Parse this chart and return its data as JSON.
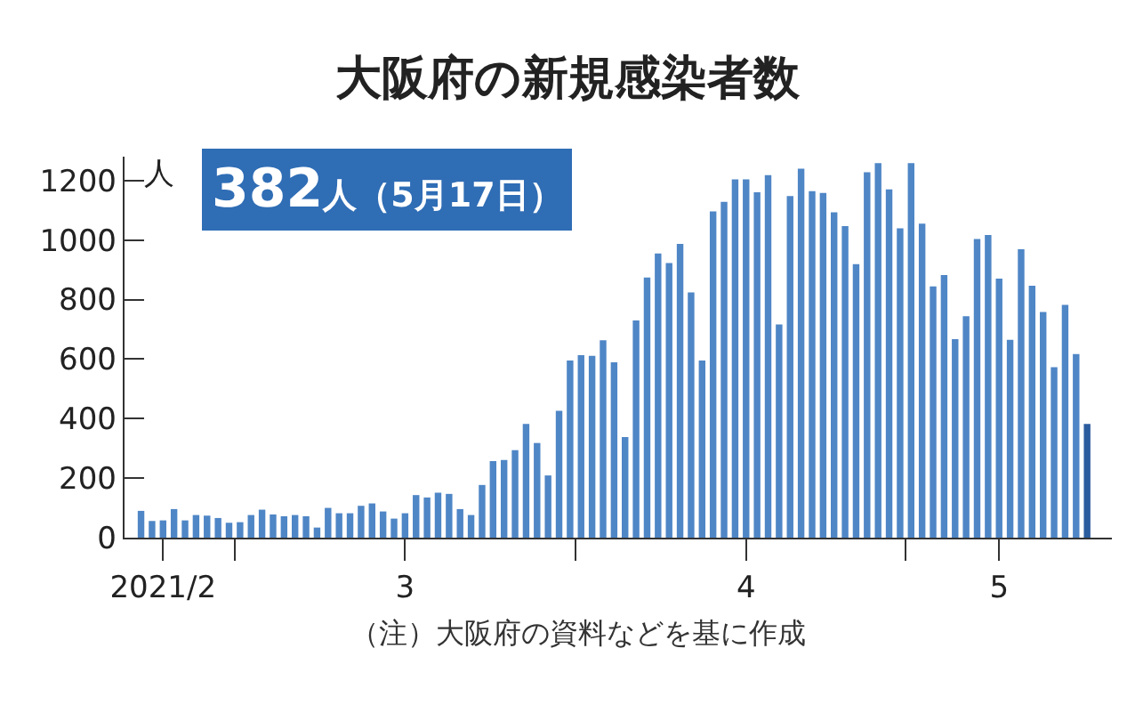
{
  "chart_data": {
    "type": "bar",
    "title": "大阪府の新規感染者数",
    "ylabel": "人",
    "annotations": [
      "382人（5月17日）",
      "（注）大阪府の資料などを基に作成"
    ],
    "x": [
      "2021-02-20",
      "2021-02-21",
      "2021-02-22",
      "2021-02-23",
      "2021-02-24",
      "2021-02-25",
      "2021-02-26",
      "2021-02-27",
      "2021-02-28",
      "2021-03-01",
      "2021-03-02",
      "2021-03-03",
      "2021-03-04",
      "2021-03-05",
      "2021-03-06",
      "2021-03-07",
      "2021-03-08",
      "2021-03-09",
      "2021-03-10",
      "2021-03-11",
      "2021-03-12",
      "2021-03-13",
      "2021-03-14",
      "2021-03-15",
      "2021-03-16",
      "2021-03-17",
      "2021-03-18",
      "2021-03-19",
      "2021-03-20",
      "2021-03-21",
      "2021-03-22",
      "2021-03-23",
      "2021-03-24",
      "2021-03-25",
      "2021-03-26",
      "2021-03-27",
      "2021-03-28",
      "2021-03-29",
      "2021-03-30",
      "2021-03-31",
      "2021-04-01",
      "2021-04-02",
      "2021-04-03",
      "2021-04-04",
      "2021-04-05",
      "2021-04-06",
      "2021-04-07",
      "2021-04-08",
      "2021-04-09",
      "2021-04-10",
      "2021-04-11",
      "2021-04-12",
      "2021-04-13",
      "2021-04-14",
      "2021-04-15",
      "2021-04-16",
      "2021-04-17",
      "2021-04-18",
      "2021-04-19",
      "2021-04-20",
      "2021-04-21",
      "2021-04-22",
      "2021-04-23",
      "2021-04-24",
      "2021-04-25",
      "2021-04-26",
      "2021-04-27",
      "2021-04-28",
      "2021-04-29",
      "2021-04-30",
      "2021-05-01",
      "2021-05-02",
      "2021-05-03",
      "2021-05-04",
      "2021-05-05",
      "2021-05-06",
      "2021-05-07",
      "2021-05-08",
      "2021-05-09",
      "2021-05-10",
      "2021-05-11",
      "2021-05-12",
      "2021-05-13",
      "2021-05-14",
      "2021-05-15",
      "2021-05-16",
      "2021-05-17"
    ],
    "values": [
      90,
      56,
      58,
      96,
      58,
      76,
      74,
      66,
      50,
      52,
      76,
      94,
      78,
      72,
      76,
      72,
      34,
      100,
      82,
      82,
      107,
      115,
      88,
      64,
      82,
      143,
      135,
      151,
      147,
      96,
      76,
      177,
      257,
      261,
      294,
      382,
      318,
      209,
      426,
      595,
      613,
      611,
      663,
      589,
      338,
      730,
      874,
      955,
      923,
      987,
      824,
      595,
      1096,
      1128,
      1204,
      1204,
      1160,
      1218,
      716,
      1148,
      1240,
      1164,
      1158,
      1093,
      1047,
      919,
      1228,
      1258,
      1170,
      1039,
      1258,
      1055,
      844,
      882,
      667,
      744,
      1003,
      1017,
      870,
      665,
      969,
      846,
      758,
      573,
      782,
      617,
      382
    ],
    "colors": [
      "#4f86c6",
      "#4f86c6",
      "#4f86c6",
      "#4f86c6",
      "#4f86c6",
      "#4f86c6",
      "#4f86c6",
      "#4f86c6",
      "#4f86c6",
      "#4f86c6",
      "#4f86c6",
      "#4f86c6",
      "#4f86c6",
      "#4f86c6",
      "#4f86c6",
      "#4f86c6",
      "#4f86c6",
      "#4f86c6",
      "#4f86c6",
      "#4f86c6",
      "#4f86c6",
      "#4f86c6",
      "#4f86c6",
      "#4f86c6",
      "#4f86c6",
      "#4f86c6",
      "#4f86c6",
      "#4f86c6",
      "#4f86c6",
      "#4f86c6",
      "#4f86c6",
      "#4f86c6",
      "#4f86c6",
      "#4f86c6",
      "#4f86c6",
      "#4f86c6",
      "#4f86c6",
      "#4f86c6",
      "#4f86c6",
      "#4f86c6",
      "#4f86c6",
      "#4f86c6",
      "#4f86c6",
      "#4f86c6",
      "#4f86c6",
      "#4f86c6",
      "#4f86c6",
      "#4f86c6",
      "#4f86c6",
      "#4f86c6",
      "#4f86c6",
      "#4f86c6",
      "#4f86c6",
      "#4f86c6",
      "#4f86c6",
      "#4f86c6",
      "#4f86c6",
      "#4f86c6",
      "#4f86c6",
      "#4f86c6",
      "#4f86c6",
      "#4f86c6",
      "#4f86c6",
      "#4f86c6",
      "#4f86c6",
      "#4f86c6",
      "#4f86c6",
      "#4f86c6",
      "#4f86c6",
      "#4f86c6",
      "#4f86c6",
      "#4f86c6",
      "#4f86c6",
      "#4f86c6",
      "#4f86c6",
      "#4f86c6",
      "#4f86c6",
      "#4f86c6",
      "#4f86c6",
      "#4f86c6",
      "#4f86c6",
      "#4f86c6",
      "#4f86c6",
      "#4f86c6",
      "#4f86c6",
      "#4f86c6",
      "#2b5c9e"
    ],
    "xlim": [
      "2021-02-18T12:00",
      "2021-05-19T06:00"
    ],
    "xticks": [
      {
        "value": "2021-02-22",
        "label": "2021/2"
      },
      {
        "value": "2021-02-28T12:00",
        "label": null
      },
      {
        "value": "2021-03-16",
        "label": "3"
      },
      {
        "value": "2021-03-31T12:00",
        "label": null
      },
      {
        "value": "2021-04-16",
        "label": "4"
      },
      {
        "value": "2021-04-30T12:00",
        "label": null
      },
      {
        "value": "2021-05-09",
        "label": "5"
      }
    ],
    "ylim": [
      0,
      1280
    ],
    "yticks": [
      0,
      200,
      400,
      600,
      800,
      1000,
      1200
    ]
  }
}
